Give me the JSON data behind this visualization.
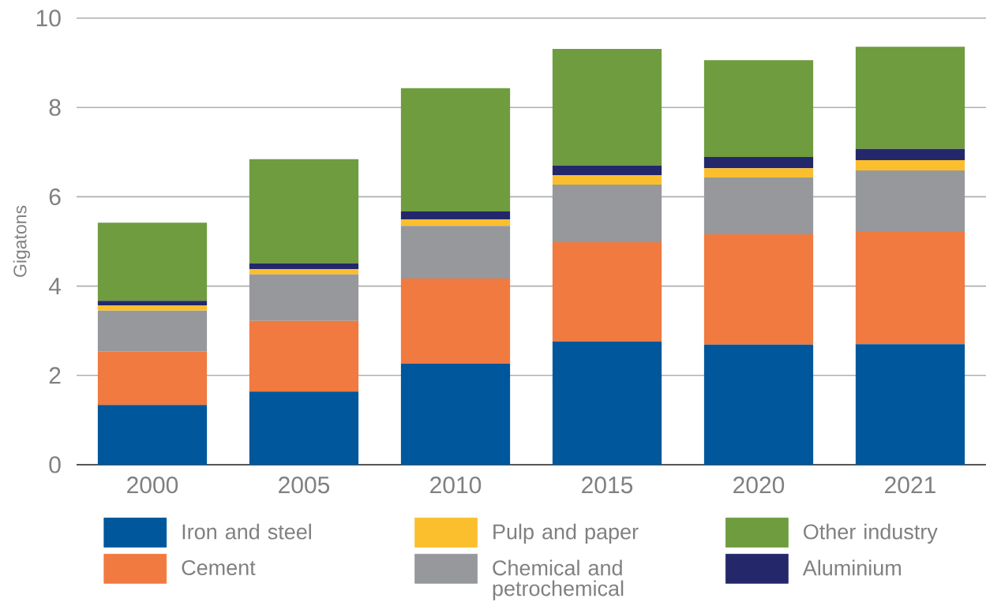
{
  "chart_data": {
    "type": "bar",
    "stacked": true,
    "categories": [
      "2000",
      "2005",
      "2010",
      "2015",
      "2020",
      "2021"
    ],
    "ylabel": "Gigatons",
    "ylim": [
      0,
      10
    ],
    "yticks": [
      0,
      2,
      4,
      6,
      8,
      10
    ],
    "grid": "y",
    "legend": "bottom",
    "series": [
      {
        "name": "Iron and steel",
        "color": "#00579b",
        "values": [
          1.34,
          1.64,
          2.26,
          2.76,
          2.69,
          2.7
        ]
      },
      {
        "name": "Cement",
        "color": "#f07a3f",
        "values": [
          1.19,
          1.58,
          1.91,
          2.22,
          2.47,
          2.53
        ]
      },
      {
        "name": "Chemical and petrochemical",
        "color": "#97989c",
        "values": [
          0.92,
          1.04,
          1.18,
          1.29,
          1.27,
          1.36
        ]
      },
      {
        "name": "Pulp and paper",
        "color": "#fbbf2e",
        "values": [
          0.12,
          0.12,
          0.14,
          0.21,
          0.21,
          0.23
        ]
      },
      {
        "name": "Aluminium",
        "color": "#24286b",
        "values": [
          0.1,
          0.13,
          0.18,
          0.22,
          0.25,
          0.25
        ]
      },
      {
        "name": "Other industry",
        "color": "#6e9c3f",
        "values": [
          1.75,
          2.33,
          2.76,
          2.61,
          2.17,
          2.29
        ]
      }
    ]
  }
}
